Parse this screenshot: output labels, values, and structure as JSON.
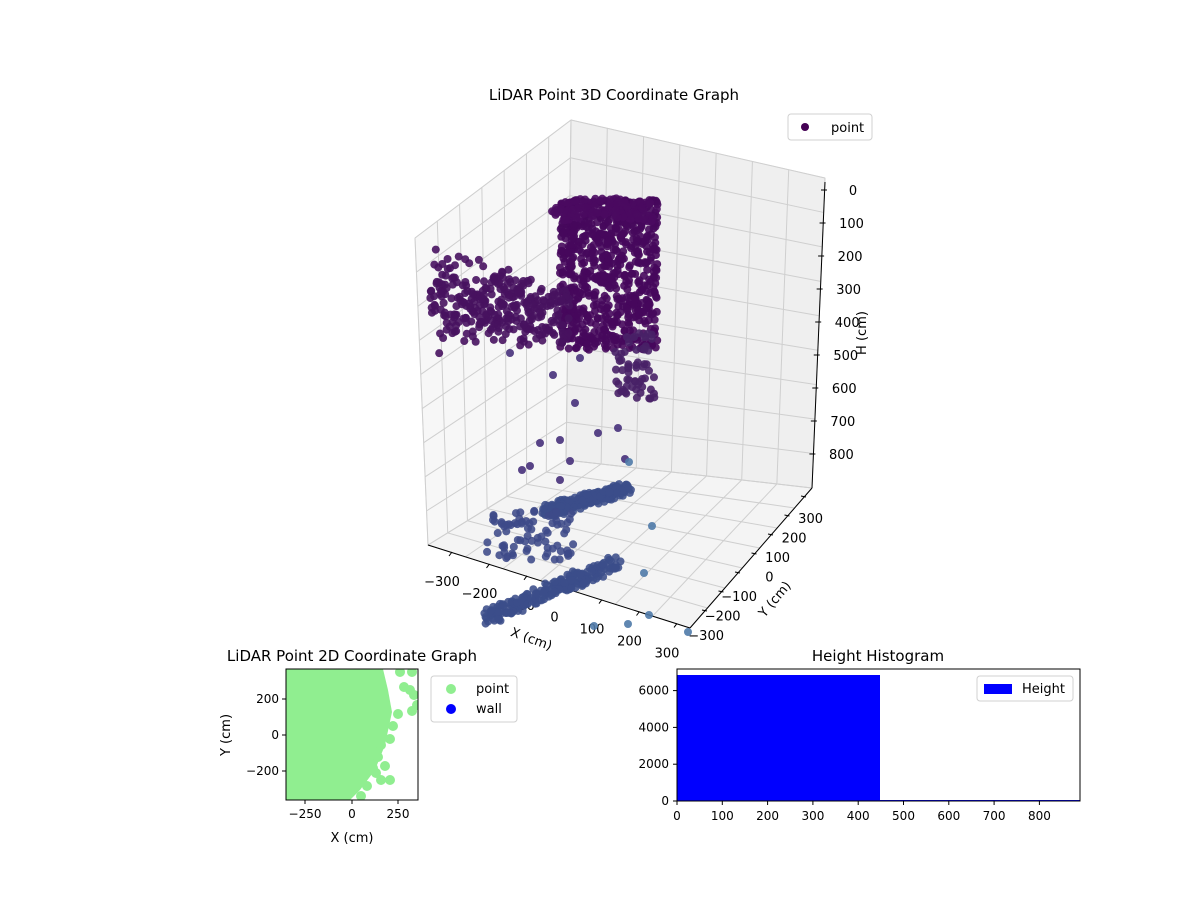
{
  "chart_data": [
    {
      "type": "scatter",
      "projection": "3d",
      "title": "LiDAR Point 3D Coordinate Graph",
      "xlabel": "X (cm)",
      "ylabel": "Y (cm)",
      "zlabel": "H (cm)",
      "xticks": [
        -300,
        -200,
        -100,
        0,
        100,
        200,
        300
      ],
      "yticks": [
        -300,
        -200,
        -100,
        0,
        100,
        200,
        300
      ],
      "zticks": [
        0,
        100,
        200,
        300,
        400,
        500,
        600,
        700,
        800
      ],
      "xlim": [
        -350,
        350
      ],
      "ylim": [
        -350,
        350
      ],
      "zlim": [
        0,
        890
      ],
      "z_inverted": true,
      "colormap": "viridis (colored by height)",
      "legend": [
        {
          "label": "point",
          "color": "#440154",
          "marker": "circle"
        }
      ],
      "legend_position": "upper right",
      "grid": true,
      "description": "Dense cluster of dark purple points near top (H 0-450) forming a curved wall shape; sparse blue points near bottom (H ~700-890)"
    },
    {
      "type": "scatter",
      "title": "LiDAR Point 2D Coordinate Graph",
      "xlabel": "X (cm)",
      "ylabel": "Y (cm)",
      "xticks": [
        -250,
        0,
        250
      ],
      "yticks": [
        -200,
        0,
        200
      ],
      "xlim": [
        -350,
        350
      ],
      "ylim": [
        -350,
        350
      ],
      "series": [
        {
          "name": "point",
          "color": "#90ee90"
        },
        {
          "name": "wall",
          "color": "#0000ff"
        }
      ],
      "legend_position": "outside right",
      "description": "Light green points fill most of the area, thinning toward the right edge"
    },
    {
      "type": "bar",
      "subtype": "histogram",
      "title": "Height Histogram",
      "xlabel": "",
      "ylabel": "",
      "bins": [
        [
          0,
          450
        ],
        [
          450,
          890
        ]
      ],
      "categories": [
        "0-450",
        "450-890"
      ],
      "values": [
        6850,
        40
      ],
      "xticks": [
        0,
        100,
        200,
        300,
        400,
        500,
        600,
        700,
        800
      ],
      "yticks": [
        0,
        2000,
        4000,
        6000
      ],
      "xlim": [
        0,
        890
      ],
      "ylim": [
        0,
        7200
      ],
      "legend": [
        {
          "label": "Height",
          "color": "#0000ff"
        }
      ],
      "legend_position": "upper right",
      "color": "#0000ff"
    }
  ],
  "plot3d": {
    "title": "LiDAR Point 3D Coordinate Graph",
    "legend_label": "point",
    "xlabel": "X (cm)",
    "ylabel": "Y (cm)",
    "zlabel": "H (cm)",
    "xtick_labels": [
      "−300",
      "−200",
      "−100",
      "0",
      "100",
      "200",
      "300"
    ],
    "ytick_labels": [
      "−300",
      "−200",
      "−100",
      "0",
      "100",
      "200",
      "300"
    ],
    "ztick_labels": [
      "0",
      "100",
      "200",
      "300",
      "400",
      "500",
      "600",
      "700",
      "800"
    ]
  },
  "plot2d": {
    "title": "LiDAR Point 2D Coordinate Graph",
    "xlabel": "X (cm)",
    "ylabel": "Y (cm)",
    "xtick_labels": [
      "−250",
      "0",
      "250"
    ],
    "ytick_labels": [
      "200",
      "0",
      "−200"
    ],
    "legend": [
      "point",
      "wall"
    ]
  },
  "hist": {
    "title": "Height Histogram",
    "legend_label": "Height",
    "xtick_labels": [
      "0",
      "100",
      "200",
      "300",
      "400",
      "500",
      "600",
      "700",
      "800"
    ],
    "ytick_labels": [
      "0",
      "2000",
      "4000",
      "6000"
    ]
  },
  "colors": {
    "top_points": "#46085c",
    "bottom_points": "#3b4d8a",
    "outlier_points": "#4f7aa8",
    "point_2d": "#90ee90",
    "wall": "#0000ff",
    "hist_bar": "#0000ff",
    "pane": "#f2f2f2",
    "grid": "#d0d0d0"
  }
}
